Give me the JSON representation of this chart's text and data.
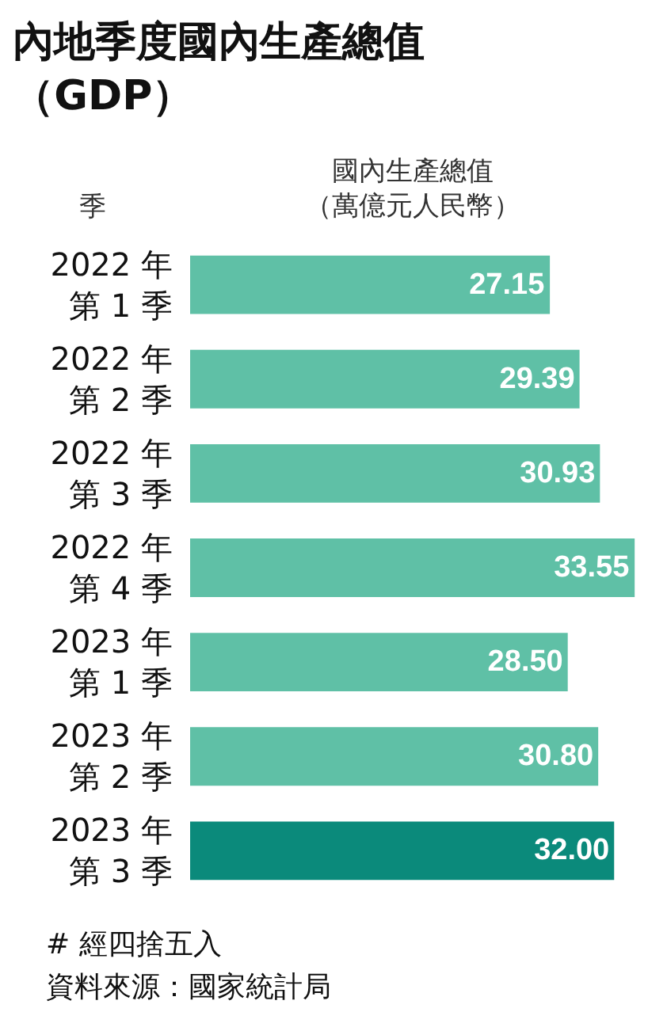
{
  "chart_data": {
    "type": "bar",
    "orientation": "horizontal",
    "title": "內地季度國內生產總值（GDP）",
    "xlabel": "國內生產總值（萬億元人民幣）",
    "ylabel": "季",
    "categories": [
      "2022 年第 1 季",
      "2022 年第 2 季",
      "2022 年第 3 季",
      "2022 年第 4 季",
      "2023 年第 1 季",
      "2023 年第 2 季",
      "2023 年第 3 季"
    ],
    "values": [
      27.15,
      29.39,
      30.93,
      33.55,
      28.5,
      30.8,
      32.0
    ],
    "value_labels": [
      "27.15",
      "29.39",
      "30.93",
      "33.55",
      "28.50",
      "30.80",
      "32.00"
    ],
    "colors": [
      "#5fc0a6",
      "#5fc0a6",
      "#5fc0a6",
      "#5fc0a6",
      "#5fc0a6",
      "#5fc0a6",
      "#0b8a7b"
    ],
    "xlim": [
      0,
      33.6
    ],
    "tick_labels": "y",
    "annotations": [
      "# 經四捨五入",
      "資料來源：國家統計局"
    ]
  }
}
